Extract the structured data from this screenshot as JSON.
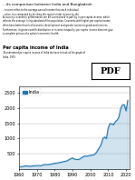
{
  "chart_data": {
    "type": "area",
    "title": "...its comparison between India and Bangladesh",
    "subtitle": "Per capita income of India",
    "annotations": [
      "...income refers to the average annual income that each individual\n...ation. It is computed by dividing the region's total income by the",
      "A country's economic performance can be summarized in part by its per capita income, which\nreflects the average living standard of the population. Countries with higher per capita income\noften have better levels of economic development and greater access to goods and services.\nFurthermore, it ignores wealth distribution or income inequality; per capita income does not give\na complete picture of a nation's economic health.",
      "To understand per capita income of India we have to look at the graph of\nIndia. 1975",
      "PDF"
    ],
    "x": [
      1960,
      1961,
      1962,
      1963,
      1964,
      1965,
      1966,
      1967,
      1968,
      1969,
      1970,
      1971,
      1972,
      1973,
      1974,
      1975,
      1976,
      1977,
      1978,
      1979,
      1980,
      1981,
      1982,
      1983,
      1984,
      1985,
      1986,
      1987,
      1988,
      1989,
      1990,
      1991,
      1992,
      1993,
      1994,
      1995,
      1996,
      1997,
      1998,
      1999,
      2000,
      2001,
      2002,
      2003,
      2004,
      2005,
      2006,
      2007,
      2008,
      2009,
      2010,
      2011,
      2012,
      2013,
      2014,
      2015,
      2016,
      2017,
      2018,
      2019,
      2020,
      2021
    ],
    "series": [
      {
        "name": "India",
        "values": [
          82,
          85,
          88,
          100,
          112,
          100,
          95,
          102,
          108,
          114,
          118,
          120,
          112,
          130,
          148,
          152,
          148,
          155,
          168,
          180,
          192,
          200,
          208,
          222,
          230,
          248,
          258,
          275,
          310,
          340,
          368,
          330,
          320,
          315,
          330,
          372,
          410,
          430,
          425,
          440,
          452,
          460,
          470,
          520,
          600,
          700,
          800,
          1000,
          1050,
          1000,
          1340,
          1490,
          1480,
          1450,
          1550,
          1600,
          1700,
          1980,
          2100,
          2100,
          1900,
          2250
        ]
      }
    ],
    "xlim": [
      1960,
      2022
    ],
    "xticks": [
      1960,
      1970,
      1980,
      1990,
      2000,
      2010,
      2020
    ],
    "ylim": [
      0,
      2700
    ],
    "yticks": [
      500,
      1000,
      1500,
      2000,
      2500
    ],
    "grid": "y",
    "legend": "upper left"
  }
}
